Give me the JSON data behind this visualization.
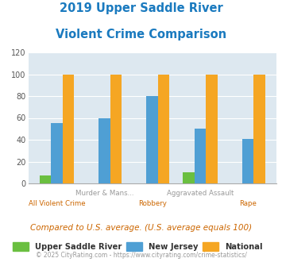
{
  "title_line1": "2019 Upper Saddle River",
  "title_line2": "Violent Crime Comparison",
  "title_color": "#1a7abf",
  "categories": [
    "All Violent Crime",
    "Murder & Mans...",
    "Robbery",
    "Aggravated Assault",
    "Rape"
  ],
  "top_labels": [
    "",
    "Murder & Mans...",
    "",
    "Aggravated Assault",
    ""
  ],
  "bottom_labels": [
    "All Violent Crime",
    "",
    "Robbery",
    "",
    "Rape"
  ],
  "city_values": [
    7,
    0,
    0,
    10,
    0
  ],
  "state_values": [
    55,
    60,
    80,
    50,
    41
  ],
  "national_values": [
    100,
    100,
    100,
    100,
    100
  ],
  "city_color": "#6abf40",
  "state_color": "#4f9fd4",
  "national_color": "#f5a623",
  "background_color": "#dde8f0",
  "ylim": [
    0,
    120
  ],
  "yticks": [
    0,
    20,
    40,
    60,
    80,
    100,
    120
  ],
  "legend_labels": [
    "Upper Saddle River",
    "New Jersey",
    "National"
  ],
  "footnote1": "Compared to U.S. average. (U.S. average equals 100)",
  "footnote2": "© 2025 CityRating.com - https://www.cityrating.com/crime-statistics/",
  "footnote1_color": "#cc6600",
  "footnote2_color": "#999999",
  "top_label_color": "#999999",
  "bottom_label_color": "#cc6600"
}
